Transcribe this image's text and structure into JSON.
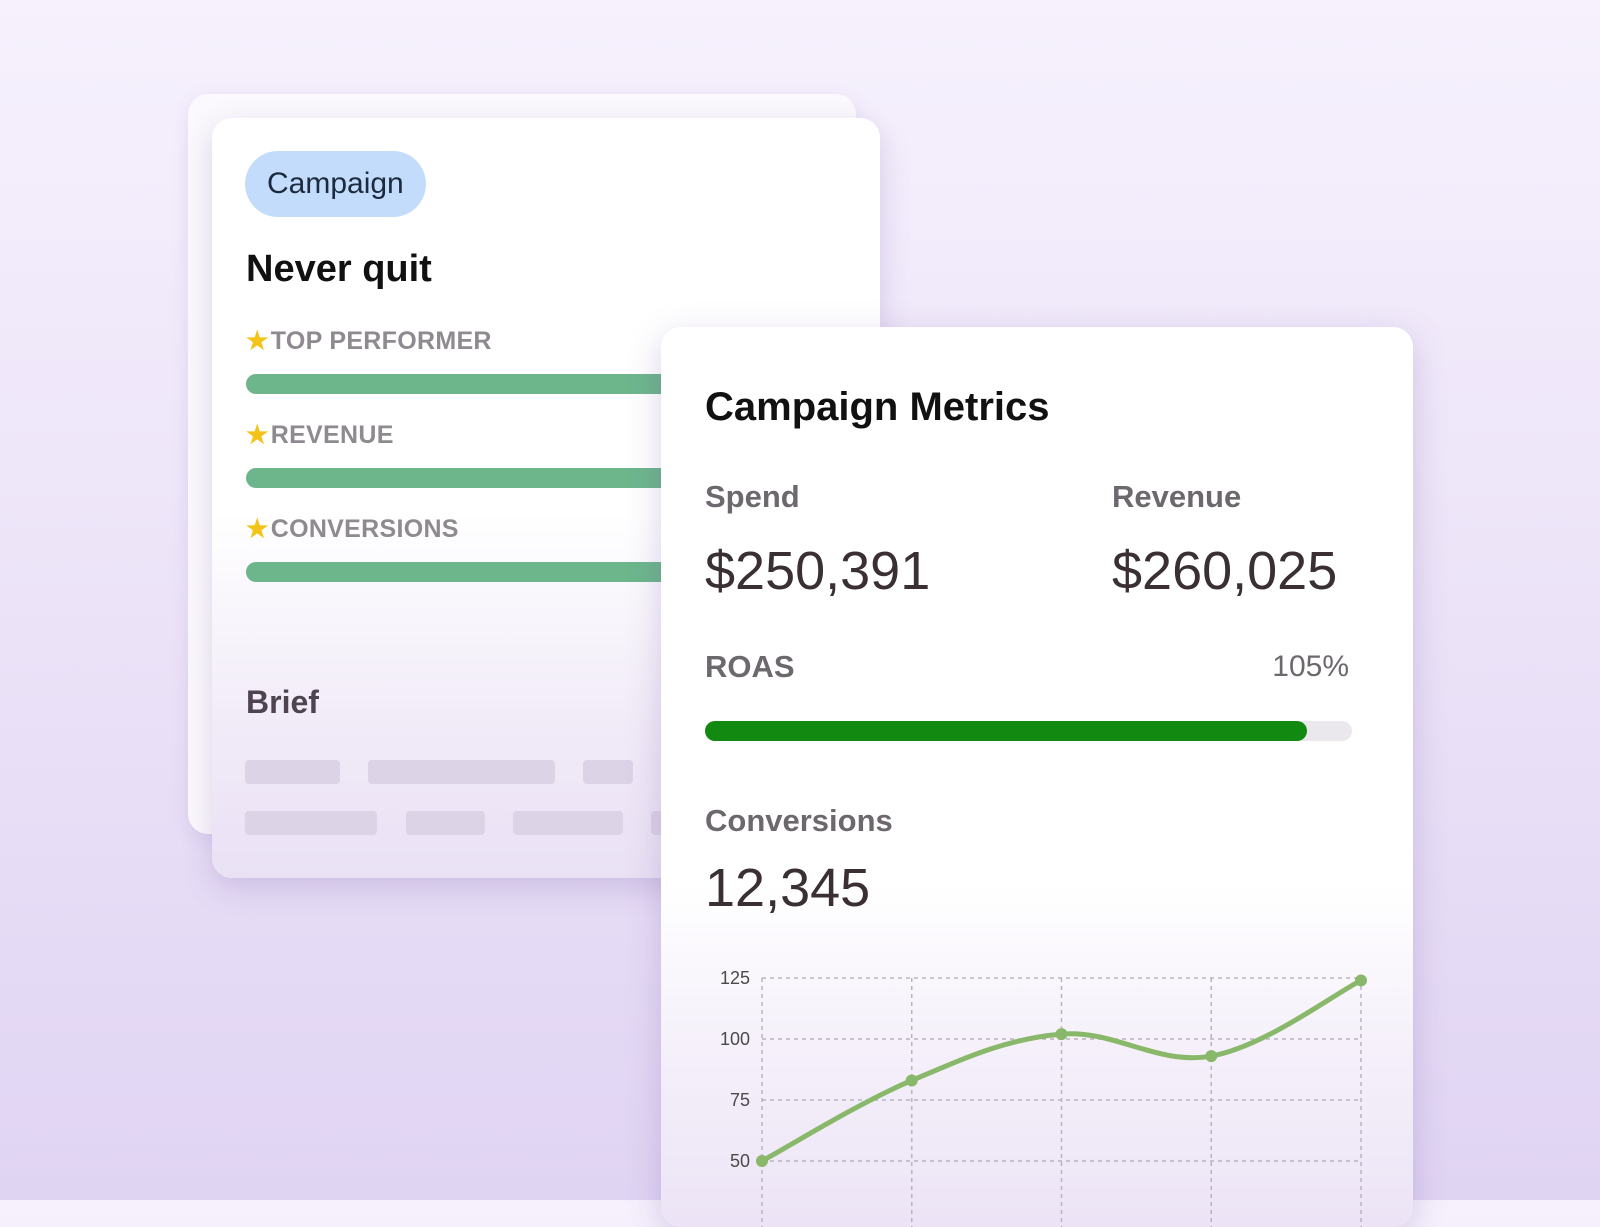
{
  "campaign_card": {
    "tag": "Campaign",
    "title": "Never quit",
    "metrics": [
      {
        "label": "TOP PERFORMER"
      },
      {
        "label": "REVENUE"
      },
      {
        "label": "CONVERSIONS"
      }
    ],
    "brief_title": "Brief"
  },
  "metrics_card": {
    "title": "Campaign Metrics",
    "spend_label": "Spend",
    "spend_value": "$250,391",
    "revenue_label": "Revenue",
    "revenue_value": "$260,025",
    "roas_label": "ROAS",
    "roas_value": "105%",
    "roas_bar_fill": 0.93,
    "conversions_label": "Conversions",
    "conversions_value": "12,345"
  },
  "colors": {
    "star": "#f3c318",
    "metric_bar": "#6db68c",
    "roas_fill": "#128a12",
    "line": "#8ab86a",
    "tag_bg": "#c4dcfb"
  },
  "icons": {
    "star": "star-icon"
  },
  "chart_data": {
    "type": "line",
    "x": [
      1,
      2,
      3,
      4,
      5
    ],
    "series": [
      {
        "values": [
          50,
          83,
          102,
          93,
          124
        ]
      }
    ],
    "y_ticks": [
      "125",
      "100",
      "75",
      "50"
    ],
    "ylim": [
      50,
      125
    ],
    "grid": true
  }
}
